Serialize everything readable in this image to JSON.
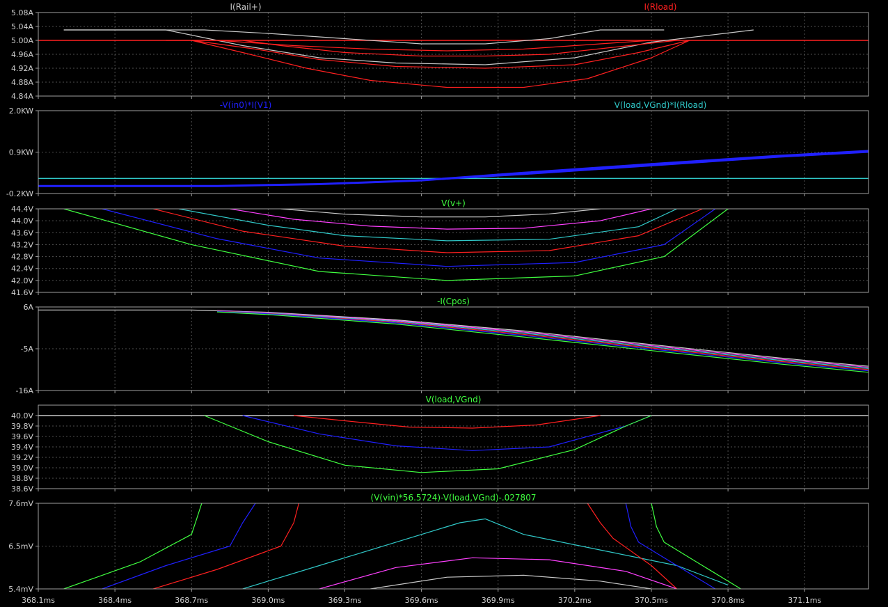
{
  "x_axis": {
    "range": [
      368.1,
      371.35
    ],
    "ticks": [
      368.1,
      368.4,
      368.7,
      369.0,
      369.3,
      369.6,
      369.9,
      370.2,
      370.5,
      370.8,
      371.1
    ],
    "labels": [
      "368.1ms",
      "368.4ms",
      "368.7ms",
      "369.0ms",
      "369.3ms",
      "369.6ms",
      "369.9ms",
      "370.2ms",
      "370.5ms",
      "370.8ms",
      "371.1ms"
    ]
  },
  "colors": {
    "background": "#000000",
    "frame": "#a0a0a0",
    "grid": "#505050",
    "gray": "#c8c8c8",
    "red": "#ff2020",
    "blue": "#2020ff",
    "cyan": "#30c8c8",
    "magenta": "#ff40ff",
    "green": "#40ff40"
  },
  "chart_data": [
    {
      "type": "line",
      "labels": [
        {
          "text": "I(Rail+)",
          "color": "gray"
        },
        {
          "text": "I(Rload)",
          "color": "red"
        }
      ],
      "ylim": [
        4.84,
        5.08
      ],
      "yticks": [
        5.08,
        5.04,
        5.0,
        4.96,
        4.92,
        4.88,
        4.84
      ],
      "ytick_labels": [
        "5.08A",
        "5.04A",
        "5.00A",
        "4.96A",
        "4.92A",
        "4.88A",
        "4.84A"
      ],
      "hlines": [
        {
          "y": 5.0,
          "color": "red"
        }
      ],
      "series": [
        {
          "color": "gray",
          "x": [
            368.2,
            368.75,
            369.0,
            369.3,
            369.6,
            369.85,
            370.1,
            370.3,
            370.55
          ],
          "y": [
            5.03,
            5.03,
            5.02,
            5.005,
            4.99,
            4.99,
            5.005,
            5.03,
            5.03
          ]
        },
        {
          "color": "gray",
          "x": [
            368.2,
            368.6,
            368.9,
            369.2,
            369.5,
            369.85,
            370.2,
            370.5,
            370.9
          ],
          "y": [
            5.03,
            5.03,
            4.985,
            4.95,
            4.935,
            4.93,
            4.95,
            4.995,
            5.03
          ]
        },
        {
          "color": "red",
          "x": [
            368.6,
            368.8,
            369.1,
            369.4,
            369.7,
            370.0,
            370.3,
            370.5
          ],
          "y": [
            5.0,
            5.0,
            4.985,
            4.975,
            4.97,
            4.975,
            4.99,
            5.0
          ]
        },
        {
          "color": "red",
          "x": [
            368.9,
            369.05,
            369.3,
            369.6,
            369.85,
            370.1,
            370.35,
            370.6
          ],
          "y": [
            5.0,
            4.985,
            4.965,
            4.955,
            4.955,
            4.96,
            4.98,
            5.0
          ]
        },
        {
          "color": "red",
          "x": [
            368.7,
            368.95,
            369.2,
            369.5,
            369.85,
            370.2,
            370.45,
            370.65
          ],
          "y": [
            5.0,
            4.975,
            4.945,
            4.925,
            4.92,
            4.93,
            4.965,
            5.0
          ]
        },
        {
          "color": "red",
          "x": [
            368.7,
            368.9,
            369.15,
            369.4,
            369.7,
            370.0,
            370.25,
            370.5,
            370.65
          ],
          "y": [
            5.0,
            4.965,
            4.92,
            4.885,
            4.865,
            4.865,
            4.89,
            4.95,
            5.0
          ]
        }
      ]
    },
    {
      "type": "line",
      "labels": [
        {
          "text": "-V(in0)*I(V1)",
          "color": "blue"
        },
        {
          "text": "V(load,VGnd)*I(Rload)",
          "color": "cyan"
        }
      ],
      "ylim": [
        -0.2,
        2.0
      ],
      "yticks": [
        2.0,
        0.9,
        -0.2
      ],
      "ytick_labels": [
        "2.0KW",
        "0.9KW",
        "-0.2KW"
      ],
      "hlines": [
        {
          "y": 0.2,
          "color": "cyan"
        }
      ],
      "series": [
        {
          "color": "blue",
          "width": 3,
          "x": [
            368.1,
            368.8,
            369.2,
            369.6,
            370.0,
            370.5,
            371.0,
            371.35
          ],
          "y": [
            0.0,
            0.0,
            0.05,
            0.15,
            0.35,
            0.58,
            0.8,
            0.93
          ]
        },
        {
          "color": "blue",
          "width": 2,
          "x": [
            369.6,
            370.0,
            370.5,
            371.0,
            371.35
          ],
          "y": [
            0.15,
            0.31,
            0.54,
            0.77,
            0.9
          ]
        }
      ]
    },
    {
      "type": "line",
      "labels": [
        {
          "text": "V(v+)",
          "color": "green"
        }
      ],
      "ylim": [
        41.6,
        44.4
      ],
      "yticks": [
        44.4,
        44.0,
        43.6,
        43.2,
        42.8,
        42.4,
        42.0,
        41.6
      ],
      "ytick_labels": [
        "44.4V",
        "44.0V",
        "43.6V",
        "43.2V",
        "42.8V",
        "42.4V",
        "42.0V",
        "41.6V"
      ],
      "hlines": [],
      "series": [
        {
          "color": "gray",
          "x": [
            369.05,
            369.3,
            369.6,
            369.85,
            370.1,
            370.3
          ],
          "y": [
            44.4,
            44.22,
            44.13,
            44.13,
            44.23,
            44.4
          ]
        },
        {
          "color": "magenta",
          "x": [
            368.85,
            369.1,
            369.4,
            369.7,
            370.0,
            370.3,
            370.5
          ],
          "y": [
            44.4,
            44.05,
            43.82,
            43.72,
            43.75,
            44.0,
            44.4
          ]
        },
        {
          "color": "cyan",
          "x": [
            368.65,
            369.0,
            369.3,
            369.7,
            370.1,
            370.45,
            370.6
          ],
          "y": [
            44.4,
            43.85,
            43.5,
            43.33,
            43.38,
            43.8,
            44.4
          ]
        },
        {
          "color": "red",
          "x": [
            368.55,
            368.9,
            369.3,
            369.7,
            370.1,
            370.45,
            370.7
          ],
          "y": [
            44.4,
            43.65,
            43.15,
            42.93,
            43.0,
            43.5,
            44.4
          ]
        },
        {
          "color": "blue",
          "x": [
            368.35,
            368.8,
            369.2,
            369.7,
            370.2,
            370.55,
            370.75
          ],
          "y": [
            44.4,
            43.4,
            42.75,
            42.47,
            42.6,
            43.2,
            44.4
          ]
        },
        {
          "color": "green",
          "x": [
            368.2,
            368.7,
            369.2,
            369.7,
            370.2,
            370.55,
            370.8
          ],
          "y": [
            44.4,
            43.2,
            42.3,
            42.0,
            42.15,
            42.8,
            44.4
          ]
        }
      ]
    },
    {
      "type": "line",
      "labels": [
        {
          "text": "-I(Cpos)",
          "color": "green"
        }
      ],
      "ylim": [
        -16,
        6
      ],
      "yticks": [
        6,
        -5,
        -16
      ],
      "ytick_labels": [
        "6A",
        "-5A",
        "-16A"
      ],
      "hlines": [],
      "series": [
        {
          "color": "gray",
          "x": [
            368.1,
            368.7,
            369.0,
            369.5,
            370.0,
            370.5,
            371.0,
            371.35
          ],
          "y": [
            5.2,
            5.2,
            4.6,
            2.6,
            -0.3,
            -3.9,
            -7.4,
            -9.6
          ]
        },
        {
          "color": "magenta",
          "x": [
            368.8,
            369.0,
            369.5,
            370.0,
            370.5,
            371.0,
            371.35
          ],
          "y": [
            5.1,
            4.5,
            2.4,
            -0.6,
            -4.2,
            -7.7,
            -9.9
          ]
        },
        {
          "color": "cyan",
          "x": [
            368.8,
            369.0,
            369.5,
            370.0,
            370.5,
            371.0,
            371.35
          ],
          "y": [
            5.0,
            4.4,
            2.2,
            -0.9,
            -4.5,
            -8.0,
            -10.2
          ]
        },
        {
          "color": "red",
          "x": [
            368.8,
            369.0,
            369.5,
            370.0,
            370.5,
            371.0,
            371.35
          ],
          "y": [
            4.9,
            4.3,
            2.0,
            -1.2,
            -4.8,
            -8.3,
            -10.5
          ]
        },
        {
          "color": "blue",
          "x": [
            368.8,
            369.0,
            369.5,
            370.0,
            370.5,
            371.0,
            371.35
          ],
          "y": [
            4.8,
            4.2,
            1.8,
            -1.5,
            -5.1,
            -8.6,
            -10.8
          ]
        },
        {
          "color": "green",
          "x": [
            368.8,
            369.0,
            369.5,
            370.0,
            370.5,
            371.0,
            371.35
          ],
          "y": [
            4.7,
            4.0,
            1.5,
            -1.9,
            -5.5,
            -9.0,
            -11.2
          ]
        }
      ]
    },
    {
      "type": "line",
      "labels": [
        {
          "text": "V(load,VGnd)",
          "color": "green"
        }
      ],
      "ylim": [
        38.6,
        40.2
      ],
      "yticks": [
        40.0,
        39.8,
        39.6,
        39.4,
        39.2,
        39.0,
        38.8,
        38.6
      ],
      "ytick_labels": [
        "40.0V",
        "39.8V",
        "39.6V",
        "39.4V",
        "39.2V",
        "39.0V",
        "38.8V",
        "38.6V"
      ],
      "hlines": [
        {
          "y": 40.0,
          "color": "gray"
        }
      ],
      "series": [
        {
          "color": "red",
          "x": [
            369.1,
            369.3,
            369.55,
            369.8,
            370.05,
            370.3
          ],
          "y": [
            40.0,
            39.9,
            39.78,
            39.76,
            39.82,
            40.0
          ]
        },
        {
          "color": "blue",
          "x": [
            368.9,
            369.2,
            369.5,
            369.8,
            370.1,
            370.4,
            370.5
          ],
          "y": [
            40.0,
            39.65,
            39.42,
            39.33,
            39.4,
            39.8,
            40.0
          ]
        },
        {
          "color": "green",
          "x": [
            368.75,
            369.0,
            369.3,
            369.6,
            369.9,
            370.2,
            370.4,
            370.5
          ],
          "y": [
            40.0,
            39.5,
            39.05,
            38.91,
            38.98,
            39.35,
            39.8,
            40.0
          ]
        }
      ]
    },
    {
      "type": "line",
      "labels": [
        {
          "text": "(V(vin)*56.5724)-V(load,VGnd)-.027807",
          "color": "green"
        }
      ],
      "ylim": [
        5.4,
        7.6
      ],
      "yticks": [
        7.6,
        6.5,
        5.4
      ],
      "ytick_labels": [
        "7.6mV",
        "6.5mV",
        "5.4mV"
      ],
      "hlines": [],
      "series": [
        {
          "color": "green",
          "x": [
            368.2,
            368.5,
            368.7,
            368.72,
            368.74
          ],
          "y": [
            5.4,
            6.1,
            6.8,
            7.2,
            7.6
          ]
        },
        {
          "color": "blue",
          "x": [
            368.35,
            368.6,
            368.85,
            368.9,
            368.95
          ],
          "y": [
            5.4,
            6.0,
            6.5,
            7.1,
            7.6
          ]
        },
        {
          "color": "red",
          "x": [
            368.55,
            368.8,
            369.05,
            369.1,
            369.12
          ],
          "y": [
            5.4,
            5.9,
            6.5,
            7.1,
            7.6
          ]
        },
        {
          "color": "cyan",
          "x": [
            368.9,
            369.2,
            369.5,
            369.75,
            369.85,
            370.0,
            370.3,
            370.6,
            370.8
          ],
          "y": [
            5.4,
            6.0,
            6.6,
            7.1,
            7.2,
            6.8,
            6.4,
            6.0,
            5.5
          ]
        },
        {
          "color": "magenta",
          "x": [
            369.2,
            369.5,
            369.8,
            370.1,
            370.4,
            370.6
          ],
          "y": [
            5.4,
            5.95,
            6.2,
            6.15,
            5.85,
            5.4
          ]
        },
        {
          "color": "gray",
          "x": [
            369.4,
            369.7,
            370.0,
            370.3,
            370.5
          ],
          "y": [
            5.4,
            5.7,
            5.75,
            5.6,
            5.4
          ]
        },
        {
          "color": "red",
          "x": [
            370.25,
            370.3,
            370.35,
            370.5,
            370.6
          ],
          "y": [
            7.6,
            7.1,
            6.7,
            6.0,
            5.4
          ]
        },
        {
          "color": "blue",
          "x": [
            370.4,
            370.42,
            370.45,
            370.6,
            370.75
          ],
          "y": [
            7.6,
            7.0,
            6.6,
            6.0,
            5.4
          ]
        },
        {
          "color": "green",
          "x": [
            370.5,
            370.52,
            370.55,
            370.7,
            370.85
          ],
          "y": [
            7.6,
            7.0,
            6.6,
            6.0,
            5.4
          ]
        }
      ]
    }
  ]
}
